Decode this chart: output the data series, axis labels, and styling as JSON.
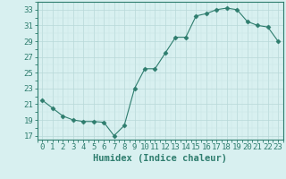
{
  "x": [
    0,
    1,
    2,
    3,
    4,
    5,
    6,
    7,
    8,
    9,
    10,
    11,
    12,
    13,
    14,
    15,
    16,
    17,
    18,
    19,
    20,
    21,
    22,
    23
  ],
  "y": [
    21.5,
    20.5,
    19.5,
    19.0,
    18.8,
    18.8,
    18.7,
    17.0,
    18.3,
    23.0,
    25.5,
    25.5,
    27.5,
    29.5,
    29.5,
    32.2,
    32.5,
    33.0,
    33.2,
    33.0,
    31.5,
    31.0,
    30.8,
    29.0
  ],
  "line_color": "#2e7d6e",
  "marker": "D",
  "marker_size": 2.5,
  "bg_color": "#d8f0f0",
  "grid_major_color": "#b8d8d8",
  "grid_minor_color": "#c8e4e4",
  "xlabel": "Humidex (Indice chaleur)",
  "xlim": [
    -0.5,
    23.5
  ],
  "ylim": [
    16.5,
    34.0
  ],
  "yticks": [
    17,
    19,
    21,
    23,
    25,
    27,
    29,
    31,
    33
  ],
  "xticks": [
    0,
    1,
    2,
    3,
    4,
    5,
    6,
    7,
    8,
    9,
    10,
    11,
    12,
    13,
    14,
    15,
    16,
    17,
    18,
    19,
    20,
    21,
    22,
    23
  ],
  "tick_color": "#2e7d6e",
  "label_color": "#2e7d6e",
  "font_size": 6.5,
  "xlabel_fontsize": 7.5
}
